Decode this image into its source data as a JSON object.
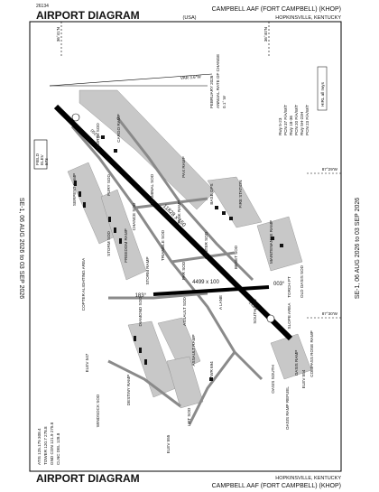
{
  "header": {
    "code": "26134",
    "title": "AIRPORT DIAGRAM",
    "country": "(USA)",
    "airport": "CAMPBELL AAF (FORT CAMPBELL) (KHOP)",
    "city": "HOPKINSVILLE, KENTUCKY"
  },
  "footer": {
    "title": "AIRPORT DIAGRAM",
    "city": "HOPKINSVILLE, KENTUCKY",
    "airport": "CAMPBELL AAF (FORT CAMPBELL) (KHOP)"
  },
  "effective": [
    "SE-1, 06 AUG 2026 to 03 SEP 2026",
    "SE-1, 06 AUG 2026 to 03 SEP 2026"
  ],
  "coordinates": [
    "36°41'N",
    "36°40'N",
    "87°29'W",
    "87°30'W"
  ],
  "magnetic": {
    "variation": "VAR 3.6°W",
    "change": [
      "FEBRUARY 2026",
      "ANNUAL RATE OF CHANGE",
      "0.1° W"
    ]
  },
  "runway_info": [
    "Rwy 5-23",
    "PCN 37 F/A/W/T",
    "Rwy 18-36",
    "PCN 20 F/A/W/T",
    "Rwy 5H-23H",
    "PCN 23 F/A/W/T"
  ],
  "hirl": "HIRL all rwys",
  "field_elev": [
    "FIELD",
    "ELEV",
    "573"
  ],
  "comms": [
    "ATIS 125.175 308.4",
    "TOWER 120.7 278.8",
    "GND CON 121.9 275.8",
    "CLNC DEL 128.8"
  ],
  "runways": [
    {
      "dims": "11828 x 150",
      "headings": [
        "052.9°",
        "232.9°"
      ]
    },
    {
      "dims": "4499 x 100",
      "headings": [
        "183°",
        "003°"
      ]
    }
  ],
  "areas": [
    "NORTH SOD",
    "CARGO RAMP",
    "SERPENT RAMP",
    "FURY SOD",
    "TERMINAL SOD",
    "PAX RAMP",
    "CHANCE SOD",
    "STORM SOD",
    "FREEDOM RAMP",
    "TANK RAMP",
    "BASE OPS",
    "FIRE STATION",
    "STORM RAMP",
    "TRIANGLE SOD",
    "CENTER SOD",
    "MAINTENANCE RAMP",
    "COPTER ALIGHTING AREA",
    "BESET SOD",
    "PAR SOD",
    "OLD OASIS SOD",
    "TORCH PT",
    "DIAMOND SOD",
    "ASSAULT SOD",
    "SOUTH SOD",
    "SLOPE AREA",
    "COMPASS ROSE RAMP",
    "OASIS SOUTH",
    "OASIS RAMP",
    "OASIS RAMP REFUEL",
    "ASSAULT RAMP",
    "DESTINY RAMP",
    "WINDSOCK SOD",
    "LIFT SOD",
    "TWR 694",
    "A LANE",
    "ELEV 547",
    "ELEV 554",
    "ELEV 555"
  ]
}
